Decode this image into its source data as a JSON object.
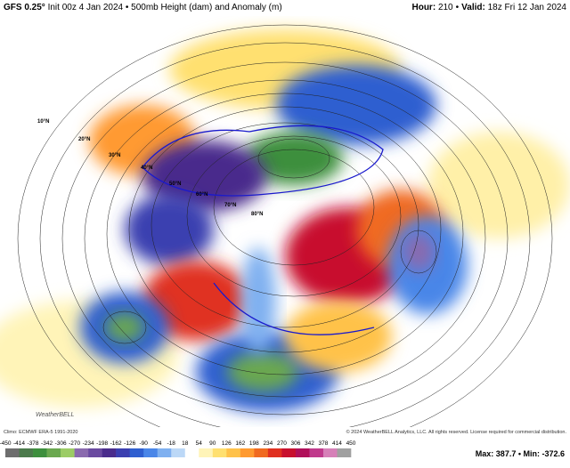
{
  "header": {
    "model": "GFS 0.25°",
    "description": "Init 00z 4 Jan 2024 • 500mb Height (dam) and Anomaly (m)",
    "hour_label": "Hour:",
    "hour": "210",
    "separator": "•",
    "valid_label": "Valid:",
    "valid": "18z Fri 12 Jan 2024"
  },
  "map": {
    "latitude_labels": [
      "10°N",
      "20°N",
      "30°N",
      "40°N",
      "50°N",
      "60°N",
      "70°N",
      "80°N"
    ],
    "logo": "WeatherBELL"
  },
  "footer": {
    "climo": "Climo: ECMWF ERA-5 1991-2020",
    "copyright": "© 2024 WeatherBELL Analytics, LLC. All rights reserved. License required for commercial distribution.",
    "stats": "Max: 387.7 • Min: -372.6"
  },
  "colorbar": {
    "labels": [
      -450,
      -414,
      -378,
      -342,
      -306,
      -270,
      -234,
      -198,
      -162,
      -126,
      -90,
      -54,
      -18,
      18,
      54,
      90,
      126,
      162,
      198,
      234,
      270,
      306,
      342,
      378,
      414,
      450
    ],
    "colors": [
      "#6e6e6e",
      "#4b7a4b",
      "#3d8f3d",
      "#6aa84f",
      "#9ccc65",
      "#8a6aae",
      "#6a4aa0",
      "#4a2c8c",
      "#3b3fb0",
      "#2f5fd0",
      "#4a86e8",
      "#7fb0f0",
      "#bcd8f7",
      "#ffffff",
      "#fff4b8",
      "#ffe070",
      "#ffc24a",
      "#ff9a30",
      "#f06a20",
      "#e03020",
      "#c8102e",
      "#b0105a",
      "#c03a8c",
      "#d680b8",
      "#a0a0a0"
    ]
  }
}
